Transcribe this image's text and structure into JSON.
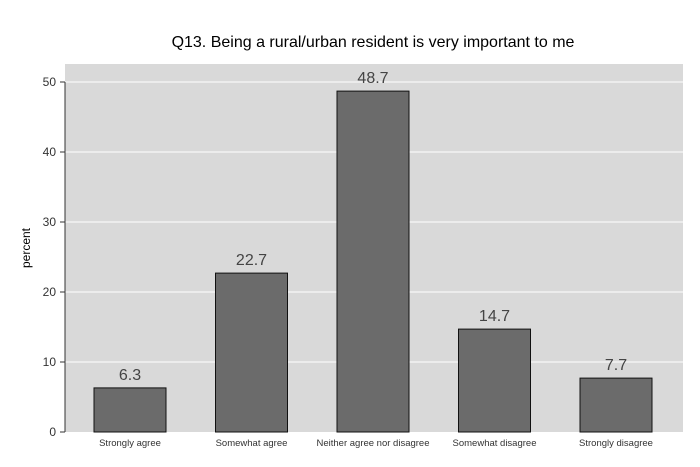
{
  "chart_data": {
    "type": "bar",
    "title": "Q13. Being a rural/urban resident is very important to me",
    "xlabel": "",
    "ylabel": "percent",
    "categories": [
      "Strongly agree",
      "Somewhat agree",
      "Neither agree nor disagree",
      "Somewhat disagree",
      "Strongly disagree"
    ],
    "values": [
      6.3,
      22.7,
      48.7,
      14.7,
      7.7
    ],
    "data_labels": [
      "6.3",
      "22.7",
      "48.7",
      "14.7",
      "7.7"
    ],
    "ylim": [
      0,
      52
    ],
    "yticks": [
      0,
      10,
      20,
      30,
      40,
      50
    ],
    "grid": true,
    "legend": "none",
    "colors": {
      "plot_background": "#d9d9d9",
      "bar_fill": "#6b6b6b",
      "bar_stroke": "#111111",
      "grid": "#ffffff"
    }
  }
}
